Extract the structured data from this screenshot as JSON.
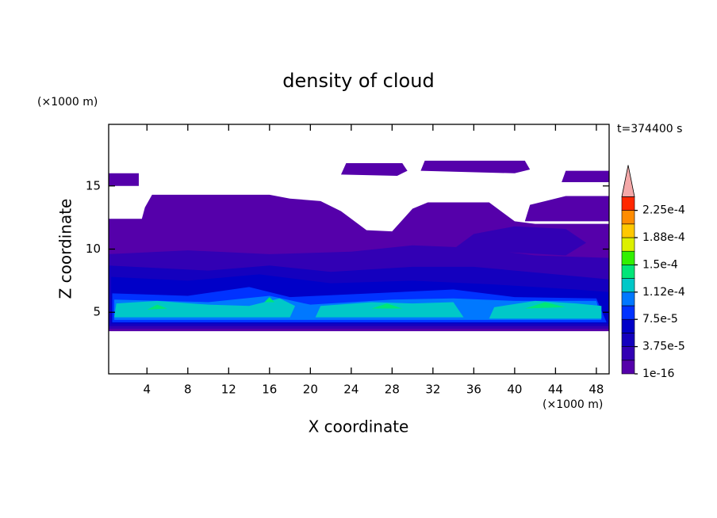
{
  "chart_data": {
    "type": "contour",
    "title": "density of cloud",
    "xlabel": "X coordinate",
    "ylabel": "Z coordinate",
    "x_unit": "(×1000 m)",
    "y_unit": "(×1000 m)",
    "annotation": "t=374400 s",
    "xlim": [
      0.25,
      49.25
    ],
    "ylim": [
      0.125,
      19.875
    ],
    "xticks": [
      4,
      8,
      12,
      16,
      20,
      24,
      28,
      32,
      36,
      40,
      44,
      48
    ],
    "yticks": [
      5,
      10,
      15
    ],
    "colorbar": {
      "ticks": [
        {
          "value": 1e-16,
          "label": "1e-16"
        },
        {
          "value": 3.75e-05,
          "label": "3.75e-5"
        },
        {
          "value": 7.5e-05,
          "label": "7.5e-5"
        },
        {
          "value": 0.000112,
          "label": "1.12e-4"
        },
        {
          "value": 0.00015,
          "label": "1.5e-4"
        },
        {
          "value": 0.000188,
          "label": "1.88e-4"
        },
        {
          "value": 0.000225,
          "label": "2.25e-4"
        }
      ],
      "colors": [
        "#5500aa",
        "#3200b4",
        "#1400be",
        "#0000c8",
        "#0032ff",
        "#0078ff",
        "#00c8c8",
        "#00e678",
        "#32f000",
        "#dcf000",
        "#ffc800",
        "#ff8c00",
        "#ff2800"
      ],
      "extend_color": "#f4a8a8"
    }
  }
}
